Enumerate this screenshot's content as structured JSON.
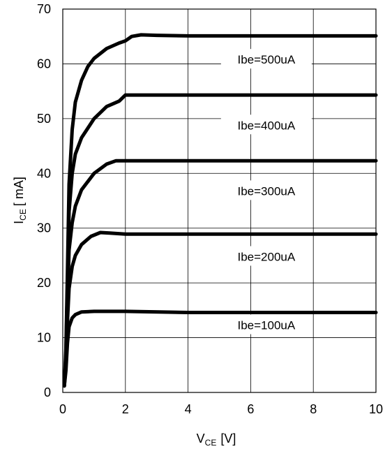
{
  "chart_data": {
    "type": "line",
    "title": "",
    "xlabel": {
      "main": "V",
      "sub": "CE",
      "unit": "[V]"
    },
    "ylabel": {
      "main": "I",
      "sub": "CE",
      "unit": "[ mA]"
    },
    "xlim": [
      0,
      10
    ],
    "ylim": [
      0,
      70
    ],
    "x_ticks": [
      "0",
      "2",
      "4",
      "6",
      "8",
      "10"
    ],
    "y_ticks": [
      "0",
      "10",
      "20",
      "30",
      "40",
      "50",
      "60",
      "70"
    ],
    "grid": true,
    "legend": "none",
    "series": [
      {
        "name": "Ibe=500uA",
        "label_at": [
          6.5,
          60.8
        ],
        "points": [
          [
            0.05,
            1.2
          ],
          [
            0.1,
            8
          ],
          [
            0.15,
            22
          ],
          [
            0.2,
            38
          ],
          [
            0.3,
            48
          ],
          [
            0.4,
            53
          ],
          [
            0.6,
            57
          ],
          [
            0.8,
            59.5
          ],
          [
            1.0,
            61
          ],
          [
            1.4,
            62.8
          ],
          [
            1.8,
            63.8
          ],
          [
            2.0,
            64.2
          ],
          [
            2.2,
            65
          ],
          [
            2.5,
            65.3
          ],
          [
            3.0,
            65.2
          ],
          [
            4.0,
            65.1
          ],
          [
            10.0,
            65.1
          ]
        ]
      },
      {
        "name": "Ibe=400uA",
        "label_at": [
          6.5,
          48.8
        ],
        "points": [
          [
            0.05,
            1.2
          ],
          [
            0.1,
            7
          ],
          [
            0.15,
            20
          ],
          [
            0.2,
            33
          ],
          [
            0.3,
            40
          ],
          [
            0.4,
            43.5
          ],
          [
            0.6,
            46.5
          ],
          [
            1.0,
            50
          ],
          [
            1.4,
            52.2
          ],
          [
            1.8,
            53.2
          ],
          [
            2.0,
            54.3
          ],
          [
            3.0,
            54.3
          ],
          [
            10.0,
            54.3
          ]
        ]
      },
      {
        "name": "Ibe=300uA",
        "label_at": [
          6.5,
          36.8
        ],
        "points": [
          [
            0.05,
            1.2
          ],
          [
            0.1,
            6
          ],
          [
            0.15,
            16
          ],
          [
            0.2,
            26
          ],
          [
            0.3,
            31
          ],
          [
            0.4,
            34
          ],
          [
            0.6,
            37
          ],
          [
            1.0,
            40
          ],
          [
            1.4,
            41.7
          ],
          [
            1.7,
            42.3
          ],
          [
            2.0,
            42.3
          ],
          [
            10.0,
            42.3
          ]
        ]
      },
      {
        "name": "Ibe=200uA",
        "label_at": [
          6.5,
          24.8
        ],
        "points": [
          [
            0.05,
            1.2
          ],
          [
            0.1,
            5
          ],
          [
            0.15,
            13
          ],
          [
            0.2,
            19
          ],
          [
            0.3,
            23
          ],
          [
            0.4,
            25
          ],
          [
            0.6,
            27
          ],
          [
            0.9,
            28.5
          ],
          [
            1.2,
            29.2
          ],
          [
            1.5,
            29.1
          ],
          [
            2.0,
            28.9
          ],
          [
            10.0,
            28.9
          ]
        ]
      },
      {
        "name": "Ibe=100uA",
        "label_at": [
          6.5,
          12.3
        ],
        "points": [
          [
            0.05,
            1.2
          ],
          [
            0.1,
            4
          ],
          [
            0.15,
            9
          ],
          [
            0.2,
            12
          ],
          [
            0.3,
            13.6
          ],
          [
            0.4,
            14.2
          ],
          [
            0.6,
            14.7
          ],
          [
            1.0,
            14.8
          ],
          [
            2.0,
            14.8
          ],
          [
            4.0,
            14.6
          ],
          [
            10.0,
            14.6
          ]
        ]
      }
    ]
  }
}
